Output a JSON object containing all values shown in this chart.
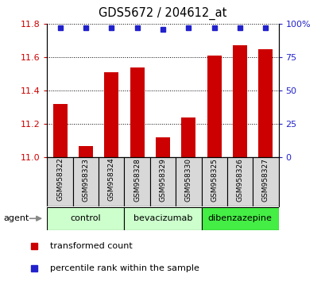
{
  "title": "GDS5672 / 204612_at",
  "samples": [
    "GSM958322",
    "GSM958323",
    "GSM958324",
    "GSM958328",
    "GSM958329",
    "GSM958330",
    "GSM958325",
    "GSM958326",
    "GSM958327"
  ],
  "bar_values": [
    11.32,
    11.07,
    11.51,
    11.54,
    11.12,
    11.24,
    11.61,
    11.67,
    11.65
  ],
  "percentile_values": [
    97,
    97,
    97,
    97,
    96,
    97,
    97,
    97,
    97
  ],
  "ylim_left": [
    11.0,
    11.8
  ],
  "ylim_right": [
    0,
    100
  ],
  "yticks_left": [
    11.0,
    11.2,
    11.4,
    11.6,
    11.8
  ],
  "yticks_right": [
    0,
    25,
    50,
    75,
    100
  ],
  "bar_color": "#cc0000",
  "dot_color": "#2222cc",
  "groups": [
    {
      "label": "control",
      "start": 0,
      "end": 3,
      "color": "#ccffcc"
    },
    {
      "label": "bevacizumab",
      "start": 3,
      "end": 6,
      "color": "#ccffcc"
    },
    {
      "label": "dibenzazepine",
      "start": 6,
      "end": 9,
      "color": "#44ee44"
    }
  ],
  "agent_label": "agent",
  "legend_bar_label": "transformed count",
  "legend_dot_label": "percentile rank within the sample",
  "bar_width": 0.55,
  "background_color": "#ffffff",
  "plot_bg_color": "#ffffff",
  "sample_bg_color": "#d8d8d8",
  "ylabel_left_color": "#cc0000",
  "ylabel_right_color": "#2222cc",
  "right_axis_tick_labels": [
    "0",
    "25",
    "50",
    "75",
    "100%"
  ]
}
